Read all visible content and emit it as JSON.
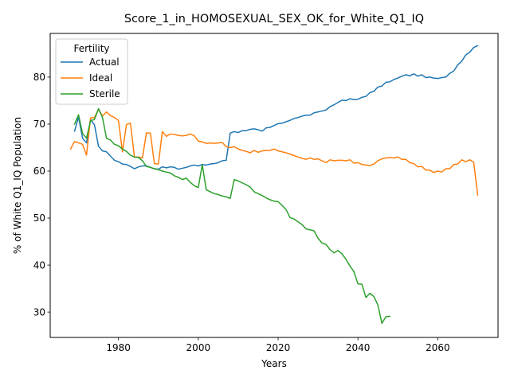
{
  "chart_data": {
    "type": "line",
    "title": "Score_1_in_HOMOSEXUAL_SEX_OK_for_White_Q1_IQ",
    "xlabel": "Years",
    "ylabel": "% of White Q1_IQ Population",
    "xlim": [
      1962.9,
      2075.1
    ],
    "ylim": [
      24.6,
      89.3
    ],
    "xticks": [
      1980,
      2000,
      2020,
      2040,
      2060
    ],
    "yticks": [
      30,
      40,
      50,
      60,
      70,
      80
    ],
    "grid": false,
    "legend": {
      "title": "Fertility",
      "position": "top-left"
    },
    "series": [
      {
        "name": "Actual",
        "color": "#1f77b4",
        "x": [
          1969,
          1970,
          1971,
          1972,
          1973,
          1974,
          1975,
          1976,
          1977,
          1978,
          1979,
          1980,
          1981,
          1982,
          1983,
          1984,
          1985,
          1986,
          1987,
          1988,
          1989,
          1990,
          1991,
          1992,
          1993,
          1994,
          1995,
          1996,
          1997,
          1998,
          1999,
          2000,
          2001,
          2002,
          2003,
          2004,
          2005,
          2006,
          2007,
          2008,
          2009,
          2010,
          2011,
          2012,
          2013,
          2014,
          2015,
          2016,
          2017,
          2018,
          2019,
          2020,
          2021,
          2022,
          2023,
          2024,
          2025,
          2026,
          2027,
          2028,
          2029,
          2030,
          2031,
          2032,
          2033,
          2034,
          2035,
          2036,
          2037,
          2038,
          2039,
          2040,
          2041,
          2042,
          2043,
          2044,
          2045,
          2046,
          2047,
          2048,
          2049,
          2050,
          2051,
          2052,
          2053,
          2054,
          2055,
          2056,
          2057,
          2058,
          2059,
          2060,
          2061,
          2062,
          2063,
          2064,
          2065,
          2066,
          2067,
          2068,
          2069,
          2070
        ],
        "y": [
          68.5,
          71.5,
          67.0,
          66.0,
          71.0,
          69.8,
          65.3,
          64.3,
          64.1,
          63.2,
          62.3,
          62.0,
          61.5,
          61.4,
          61.0,
          60.5,
          60.9,
          61.1,
          61.1,
          60.8,
          60.5,
          60.4,
          60.9,
          60.7,
          60.9,
          60.8,
          60.4,
          60.6,
          60.8,
          61.1,
          61.3,
          61.1,
          61.4,
          61.3,
          61.5,
          61.6,
          61.8,
          62.2,
          62.3,
          68.1,
          68.4,
          68.2,
          68.6,
          68.6,
          68.9,
          69.0,
          68.8,
          68.5,
          69.2,
          69.3,
          69.7,
          70.1,
          70.2,
          70.5,
          70.8,
          71.2,
          71.4,
          71.7,
          71.9,
          71.9,
          72.4,
          72.6,
          72.8,
          73.0,
          73.7,
          74.1,
          74.6,
          75.1,
          75.0,
          75.4,
          75.2,
          75.3,
          75.7,
          75.9,
          76.7,
          77.0,
          77.9,
          78.1,
          78.9,
          79.0,
          79.5,
          79.8,
          80.2,
          80.5,
          80.3,
          80.7,
          80.2,
          80.5,
          79.9,
          80.0,
          79.8,
          79.7,
          79.9,
          80.0,
          80.8,
          81.3,
          82.6,
          83.4,
          84.7,
          85.3,
          86.3,
          86.7
        ]
      },
      {
        "name": "Ideal",
        "color": "#ff7f0e",
        "x": [
          1968,
          1969,
          1970,
          1971,
          1972,
          1973,
          1974,
          1975,
          1976,
          1977,
          1978,
          1979,
          1980,
          1981,
          1982,
          1983,
          1984,
          1985,
          1986,
          1987,
          1988,
          1989,
          1990,
          1991,
          1992,
          1993,
          1994,
          1995,
          1996,
          1997,
          1998,
          1999,
          2000,
          2001,
          2002,
          2003,
          2004,
          2005,
          2006,
          2007,
          2008,
          2009,
          2010,
          2011,
          2012,
          2013,
          2014,
          2015,
          2016,
          2017,
          2018,
          2019,
          2020,
          2021,
          2022,
          2023,
          2024,
          2025,
          2026,
          2027,
          2028,
          2029,
          2030,
          2031,
          2032,
          2033,
          2034,
          2035,
          2036,
          2037,
          2038,
          2039,
          2040,
          2041,
          2042,
          2043,
          2044,
          2045,
          2046,
          2047,
          2048,
          2049,
          2050,
          2051,
          2052,
          2053,
          2054,
          2055,
          2056,
          2057,
          2058,
          2059,
          2060,
          2061,
          2062,
          2063,
          2064,
          2065,
          2066,
          2067,
          2068,
          2069,
          2070
        ],
        "y": [
          64.7,
          66.3,
          66.0,
          65.7,
          63.4,
          71.3,
          71.4,
          73.2,
          71.7,
          72.6,
          71.8,
          71.4,
          70.8,
          64.1,
          69.9,
          70.2,
          63.0,
          63.0,
          62.8,
          68.1,
          68.1,
          61.6,
          61.5,
          68.4,
          67.4,
          67.9,
          67.8,
          67.6,
          67.5,
          67.6,
          67.9,
          67.5,
          66.4,
          66.2,
          65.9,
          66.0,
          65.9,
          66.0,
          66.1,
          65.2,
          65.0,
          65.2,
          64.7,
          64.4,
          64.2,
          63.9,
          64.4,
          64.0,
          64.3,
          64.4,
          64.4,
          64.7,
          64.3,
          64.1,
          63.9,
          63.6,
          63.3,
          63.0,
          62.7,
          62.5,
          62.8,
          62.5,
          62.6,
          62.2,
          61.8,
          62.4,
          62.2,
          62.3,
          62.3,
          62.2,
          62.4,
          61.7,
          61.8,
          61.4,
          61.3,
          61.2,
          61.5,
          62.2,
          62.6,
          62.8,
          62.9,
          62.8,
          63.0,
          62.5,
          62.5,
          61.8,
          61.6,
          60.9,
          61.0,
          60.2,
          60.2,
          59.7,
          60.0,
          59.8,
          60.5,
          60.5,
          61.4,
          61.5,
          62.4,
          62.0,
          62.4,
          61.9,
          54.9
        ]
      },
      {
        "name": "Sterile",
        "color": "#2ca02c",
        "x": [
          1969,
          1970,
          1971,
          1972,
          1973,
          1974,
          1975,
          1976,
          1977,
          1978,
          1979,
          1980,
          1981,
          1982,
          1983,
          1984,
          1985,
          1986,
          1987,
          1988,
          1989,
          1990,
          1991,
          1992,
          1993,
          1994,
          1995,
          1996,
          1997,
          1998,
          1999,
          2000,
          2001,
          2002,
          2003,
          2004,
          2005,
          2006,
          2007,
          2008,
          2009,
          2010,
          2011,
          2012,
          2013,
          2014,
          2015,
          2016,
          2017,
          2018,
          2019,
          2020,
          2021,
          2022,
          2023,
          2024,
          2025,
          2026,
          2027,
          2028,
          2029,
          2030,
          2031,
          2032,
          2033,
          2034,
          2035,
          2036,
          2037,
          2038,
          2039,
          2040,
          2041,
          2042,
          2043,
          2044,
          2045,
          2046,
          2047,
          2048,
          2049
        ],
        "y": [
          70.0,
          72.0,
          68.0,
          67.0,
          70.7,
          71.0,
          73.3,
          71.4,
          67.0,
          66.6,
          65.7,
          65.4,
          64.7,
          64.2,
          63.4,
          63.0,
          62.9,
          62.2,
          61.0,
          60.8,
          60.5,
          60.3,
          60.0,
          59.8,
          59.6,
          59.0,
          58.7,
          58.2,
          58.5,
          57.6,
          56.9,
          56.5,
          61.4,
          56.0,
          55.6,
          55.2,
          55.0,
          54.7,
          54.5,
          54.2,
          58.2,
          57.9,
          57.5,
          57.1,
          56.6,
          55.6,
          55.2,
          54.8,
          54.3,
          53.9,
          53.6,
          53.5,
          52.7,
          51.8,
          50.1,
          49.8,
          49.2,
          48.6,
          47.7,
          47.5,
          47.3,
          45.7,
          44.7,
          44.4,
          43.3,
          42.6,
          43.1,
          42.4,
          41.2,
          39.8,
          38.6,
          36.0,
          35.9,
          33.1,
          34.0,
          33.3,
          31.5,
          27.6,
          29.0,
          29.1,
          null
        ]
      }
    ]
  }
}
